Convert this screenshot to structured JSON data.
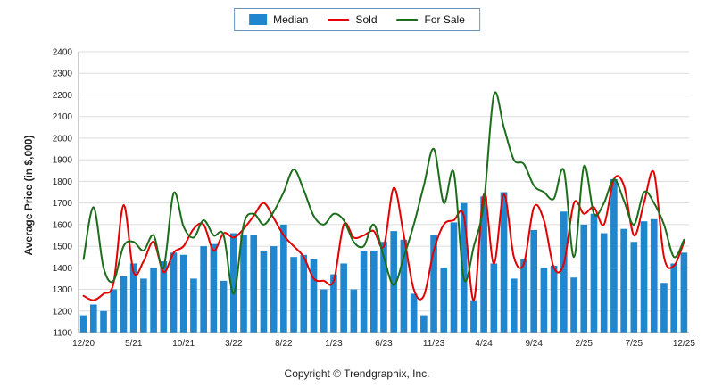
{
  "footer": {
    "copyright": "Copyright © Trendgraphix, Inc."
  },
  "chart_data": {
    "type": "bar",
    "title": "",
    "xlabel": "",
    "ylabel": "Average Price (in $,000)",
    "ylim": [
      1100,
      2400
    ],
    "ytick_step": 100,
    "grid": true,
    "legend_position": "top-center",
    "x": [
      "12/20",
      "1/21",
      "2/21",
      "3/21",
      "4/21",
      "5/21",
      "6/21",
      "7/21",
      "8/21",
      "9/21",
      "10/21",
      "11/21",
      "12/21",
      "1/22",
      "2/22",
      "3/22",
      "4/22",
      "5/22",
      "6/22",
      "7/22",
      "8/22",
      "9/22",
      "10/22",
      "11/22",
      "12/22",
      "1/23",
      "2/23",
      "3/23",
      "4/23",
      "5/23",
      "6/23",
      "7/23",
      "8/23",
      "9/23",
      "10/23",
      "11/23",
      "12/23",
      "1/24",
      "2/24",
      "3/24",
      "4/24",
      "5/24",
      "6/24",
      "7/24",
      "8/24",
      "9/24",
      "10/24",
      "11/24",
      "12/24",
      "1/25",
      "2/25",
      "3/25",
      "4/25",
      "5/25",
      "6/25",
      "7/25",
      "8/25",
      "9/25",
      "10/25",
      "11/25",
      "12/25"
    ],
    "x_tick_labels": [
      "12/20",
      "5/21",
      "10/21",
      "3/22",
      "8/22",
      "1/23",
      "6/23",
      "11/23",
      "4/24",
      "9/24",
      "2/25",
      "7/25",
      "12/25"
    ],
    "x_tick_every": 5,
    "series": [
      {
        "name": "Median",
        "kind": "bar",
        "color": "#2087cf",
        "values": [
          1180,
          1230,
          1200,
          1300,
          1360,
          1420,
          1350,
          1400,
          1430,
          1470,
          1460,
          1350,
          1500,
          1510,
          1340,
          1560,
          1550,
          1550,
          1480,
          1500,
          1600,
          1450,
          1460,
          1440,
          1300,
          1370,
          1420,
          1300,
          1480,
          1480,
          1520,
          1570,
          1530,
          1280,
          1180,
          1550,
          1400,
          1610,
          1700,
          1250,
          1730,
          1420,
          1750,
          1350,
          1440,
          1575,
          1400,
          1410,
          1660,
          1355,
          1600,
          1650,
          1560,
          1810,
          1580,
          1520,
          1615,
          1625,
          1330,
          1420,
          1470
        ]
      },
      {
        "name": "Sold",
        "kind": "line",
        "color": "#e30000",
        "values": [
          1270,
          1250,
          1280,
          1330,
          1690,
          1380,
          1430,
          1520,
          1380,
          1470,
          1500,
          1580,
          1600,
          1480,
          1560,
          1540,
          1580,
          1640,
          1700,
          1630,
          1550,
          1500,
          1450,
          1350,
          1340,
          1340,
          1600,
          1540,
          1550,
          1570,
          1500,
          1770,
          1550,
          1300,
          1270,
          1480,
          1600,
          1620,
          1640,
          1250,
          1740,
          1420,
          1740,
          1450,
          1420,
          1680,
          1620,
          1400,
          1420,
          1700,
          1650,
          1680,
          1600,
          1810,
          1780,
          1550,
          1700,
          1840,
          1450,
          1410,
          1520
        ]
      },
      {
        "name": "For Sale",
        "kind": "line",
        "color": "#1c6e1c",
        "values": [
          1440,
          1680,
          1400,
          1340,
          1500,
          1520,
          1480,
          1550,
          1400,
          1745,
          1590,
          1540,
          1620,
          1550,
          1550,
          1280,
          1600,
          1650,
          1600,
          1660,
          1750,
          1855,
          1760,
          1640,
          1600,
          1650,
          1620,
          1520,
          1500,
          1600,
          1450,
          1320,
          1450,
          1600,
          1780,
          1950,
          1700,
          1840,
          1350,
          1500,
          1700,
          2200,
          2050,
          1900,
          1880,
          1780,
          1750,
          1720,
          1850,
          1450,
          1870,
          1650,
          1700,
          1810,
          1710,
          1600,
          1750,
          1700,
          1600,
          1450,
          1530
        ]
      }
    ]
  }
}
